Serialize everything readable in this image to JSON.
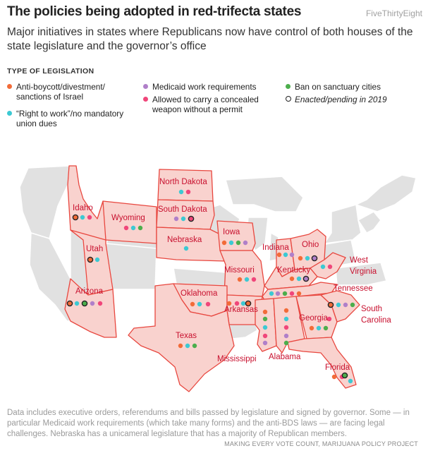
{
  "title": "The policies being adopted in red-trifecta states",
  "brand": "FiveThirtyEight",
  "subtitle": "Major initiatives in states where Republicans now have control of both houses of the state legislature and the governor’s office",
  "legend": {
    "heading": "TYPE OF LEGISLATION",
    "items": [
      {
        "key": "antibds",
        "text": "Anti-boycott/divestment/ sanctions of Israel",
        "color": "#f26b38"
      },
      {
        "key": "rtw",
        "text": "“Right to work”/no mandatory union dues",
        "color": "#3cc9d3"
      },
      {
        "key": "medicaid",
        "text": "Medicaid work requirements",
        "color": "#b07fc9"
      },
      {
        "key": "carry",
        "text": "Allowed to carry a concealed weapon without a permit",
        "color": "#f0467a"
      },
      {
        "key": "sanctuary",
        "text": "Ban on sanctuary cities",
        "color": "#4cae4c"
      },
      {
        "key": "enacted",
        "text": "Enacted/pending in 2019",
        "color": "#222222"
      }
    ]
  },
  "map_style": {
    "trifecta_fill": "#f9d2ce",
    "trifecta_stroke": "#e8473f",
    "other_fill": "#e1e1e1",
    "other_stroke": "#ffffff",
    "label_color": "#c8102e"
  },
  "states": [
    {
      "name": "Idaho",
      "policies": [
        "antibds_enacted",
        "rtw",
        "carry"
      ]
    },
    {
      "name": "Wyoming",
      "policies": [
        "carry",
        "rtw",
        "sanctuary"
      ]
    },
    {
      "name": "Utah",
      "policies": [
        "antibds_enacted",
        "rtw"
      ]
    },
    {
      "name": "Arizona",
      "policies": [
        "antibds_enacted",
        "rtw",
        "sanctuary_enacted",
        "medicaid",
        "carry"
      ]
    },
    {
      "name": "North Dakota",
      "policies": [
        "rtw",
        "carry"
      ]
    },
    {
      "name": "South Dakota",
      "policies": [
        "medicaid",
        "rtw",
        "carry_enacted"
      ]
    },
    {
      "name": "Nebraska",
      "policies": [
        "rtw"
      ]
    },
    {
      "name": "Iowa",
      "policies": [
        "antibds",
        "rtw",
        "sanctuary",
        "medicaid"
      ]
    },
    {
      "name": "Missouri",
      "policies": [
        "antibds",
        "rtw",
        "carry"
      ]
    },
    {
      "name": "Oklahoma",
      "policies": [
        "antibds",
        "rtw",
        "carry"
      ]
    },
    {
      "name": "Arkansas",
      "policies": [
        "antibds",
        "carry",
        "rtw",
        "antibds_enacted"
      ]
    },
    {
      "name": "Texas",
      "policies": [
        "antibds",
        "rtw",
        "sanctuary"
      ]
    },
    {
      "name": "Indiana",
      "policies": [
        "antibds",
        "rtw",
        "medicaid"
      ]
    },
    {
      "name": "Ohio",
      "policies": [
        "antibds",
        "rtw",
        "medicaid_enacted"
      ]
    },
    {
      "name": "Kentucky",
      "policies": [
        "antibds",
        "rtw",
        "medicaid_enacted"
      ]
    },
    {
      "name": "West Virginia",
      "policies": [
        "rtw",
        "carry"
      ]
    },
    {
      "name": "Tennessee",
      "policies": [
        "rtw",
        "medicaid",
        "sanctuary",
        "carry",
        "antibds"
      ]
    },
    {
      "name": "Mississippi",
      "policies": [
        "antibds",
        "sanctuary",
        "rtw",
        "carry",
        "medicaid"
      ]
    },
    {
      "name": "Alabama",
      "policies": [
        "antibds",
        "rtw",
        "carry",
        "medicaid",
        "sanctuary"
      ]
    },
    {
      "name": "Georgia",
      "policies": [
        "antibds",
        "rtw",
        "sanctuary",
        "carry"
      ]
    },
    {
      "name": "South Carolina",
      "policies": [
        "antibds_enacted",
        "rtw",
        "medicaid",
        "sanctuary"
      ]
    },
    {
      "name": "Florida",
      "policies": [
        "antibds",
        "carry",
        "sanctuary_enacted",
        "rtw"
      ]
    }
  ],
  "note": "Data includes executive orders, referendums and bills passed by legislature and signed by governor.  Some — in particular Medicaid work requirements (which take many forms) and the anti-BDS laws — are facing legal challenges. Nebraska has a unicameral legislature that has a majority of Republican members.",
  "source": "MAKING EVERY VOTE COUNT, MARIJUANA POLICY PROJECT"
}
